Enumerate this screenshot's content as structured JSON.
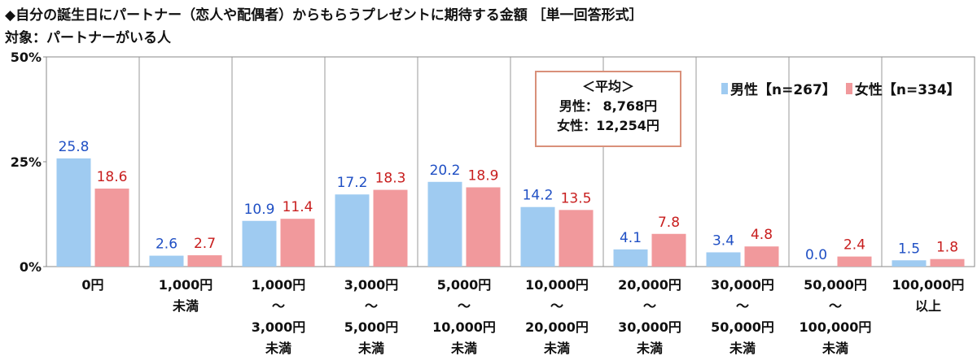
{
  "title": "◆自分の誕生日にパートナー（恋人や配偶者）からもらうプレゼントに期待する金額 ［単一回答形式］",
  "subtitle": "対象：パートナーがいる人",
  "average_box": {
    "heading": "＜平均＞",
    "male_line": "男性： 8,768円",
    "female_line": "女性：12,254円"
  },
  "colors": {
    "male": "#9fcbf1",
    "female": "#f1999c",
    "male_label": "#1f4fc4",
    "female_label": "#c81e1e"
  },
  "chart_data": {
    "type": "bar",
    "ylim": [
      0,
      50
    ],
    "yticks": [
      0,
      25,
      50
    ],
    "ytick_labels": [
      "0%",
      "25%",
      "50%"
    ],
    "grid": "vertical category separators",
    "legend": "top-right",
    "categories": [
      [
        "0円"
      ],
      [
        "1,000円",
        "未満"
      ],
      [
        "1,000円",
        "～",
        "3,000円",
        "未満"
      ],
      [
        "3,000円",
        "～",
        "5,000円",
        "未満"
      ],
      [
        "5,000円",
        "～",
        "10,000円",
        "未満"
      ],
      [
        "10,000円",
        "～",
        "20,000円",
        "未満"
      ],
      [
        "20,000円",
        "～",
        "30,000円",
        "未満"
      ],
      [
        "30,000円",
        "～",
        "50,000円",
        "未満"
      ],
      [
        "50,000円",
        "～",
        "100,000円",
        "未満"
      ],
      [
        "100,000円",
        "以上"
      ]
    ],
    "series": [
      {
        "name": "男性【n=267】",
        "values": [
          25.8,
          2.6,
          10.9,
          17.2,
          20.2,
          14.2,
          4.1,
          3.4,
          0.0,
          1.5
        ]
      },
      {
        "name": "女性【n=334】",
        "values": [
          18.6,
          2.7,
          11.4,
          18.3,
          18.9,
          13.5,
          7.8,
          4.8,
          2.4,
          1.8
        ]
      }
    ]
  }
}
